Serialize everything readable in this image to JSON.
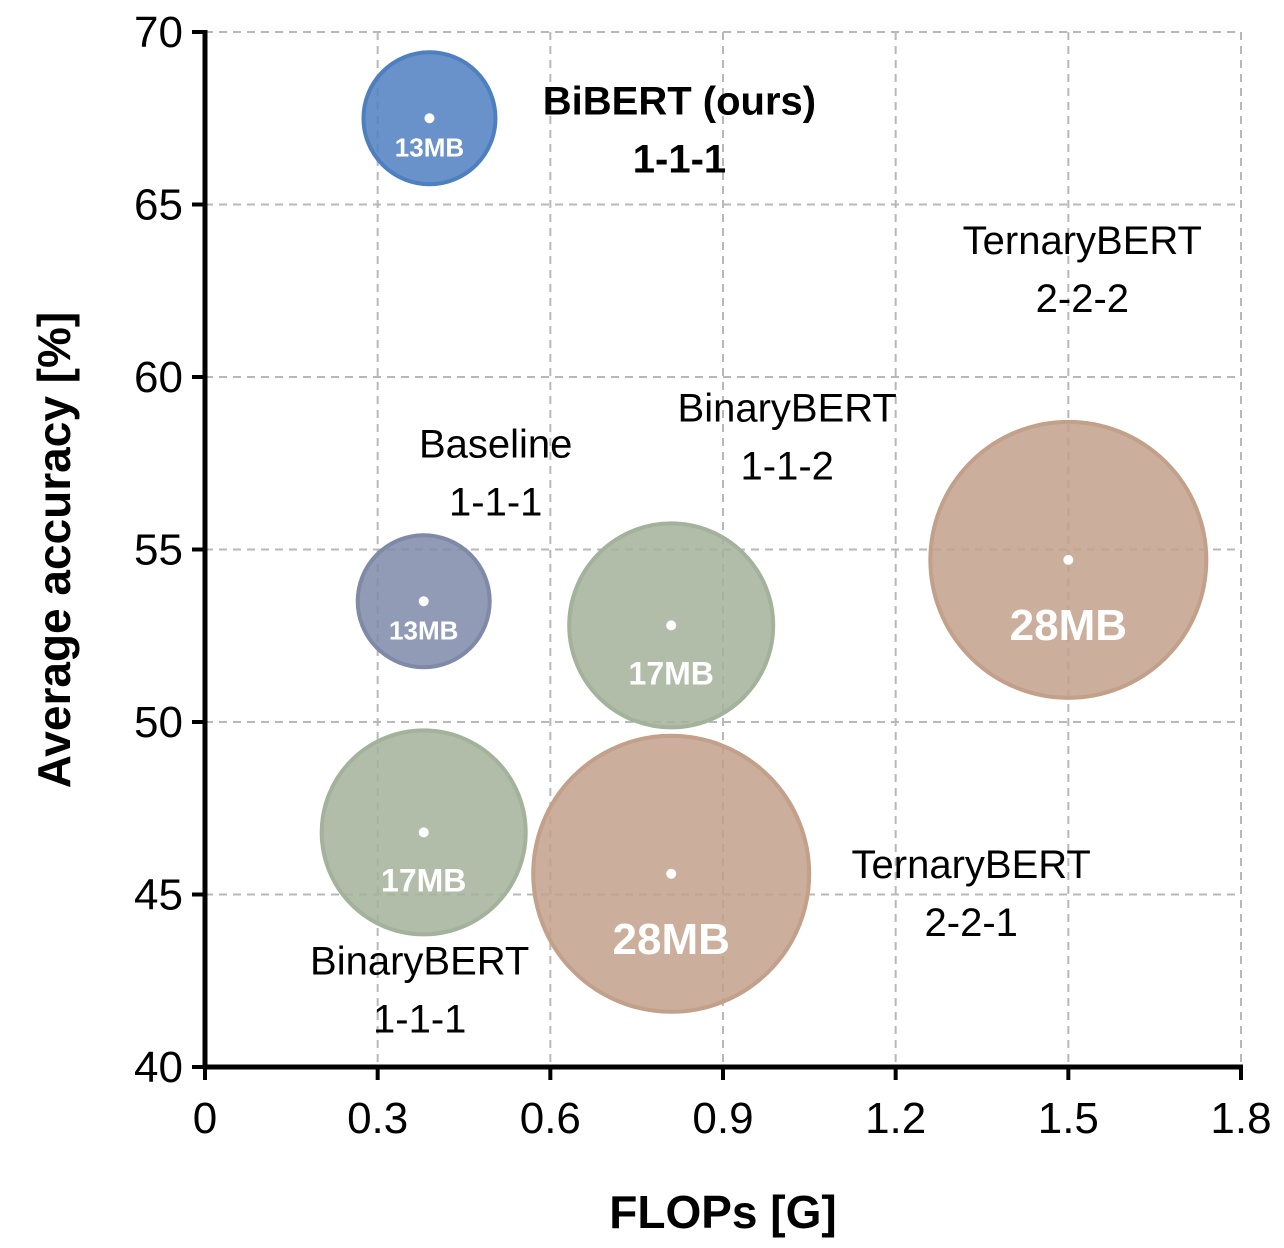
{
  "chart_data": {
    "type": "scatter",
    "title": "",
    "xlabel": "FLOPs [G]",
    "ylabel": "Average accuracy [%]",
    "xlim": [
      0,
      1.8
    ],
    "ylim": [
      40,
      70
    ],
    "xticks": [
      "0",
      "0.3",
      "0.6",
      "0.9",
      "1.2",
      "1.5",
      "1.8"
    ],
    "yticks": [
      "40",
      "45",
      "50",
      "55",
      "60",
      "65",
      "70"
    ],
    "grid": true,
    "points": [
      {
        "name": "BiBERT (ours)",
        "config": "1-1-1",
        "x": 0.39,
        "y": 67.5,
        "size_mb": 13,
        "size_label": "13MB",
        "color": "#4e7fbf",
        "bold": true
      },
      {
        "name": "Baseline",
        "config": "1-1-1",
        "x": 0.38,
        "y": 53.5,
        "size_mb": 13,
        "size_label": "13MB",
        "color": "#7f8aa8",
        "bold": false
      },
      {
        "name": "BinaryBERT",
        "config": "1-1-2",
        "x": 0.81,
        "y": 52.8,
        "size_mb": 17,
        "size_label": "17MB",
        "color": "#a3b29a",
        "bold": false
      },
      {
        "name": "BinaryBERT",
        "config": "1-1-1",
        "x": 0.38,
        "y": 46.8,
        "size_mb": 17,
        "size_label": "17MB",
        "color": "#a3b29a",
        "bold": false
      },
      {
        "name": "TernaryBERT",
        "config": "2-2-1",
        "x": 0.81,
        "y": 45.6,
        "size_mb": 28,
        "size_label": "28MB",
        "color": "#c2a08a",
        "bold": false
      },
      {
        "name": "TernaryBERT",
        "config": "2-2-2",
        "x": 1.5,
        "y": 54.7,
        "size_mb": 28,
        "size_label": "28MB",
        "color": "#c2a08a",
        "bold": false
      }
    ]
  }
}
